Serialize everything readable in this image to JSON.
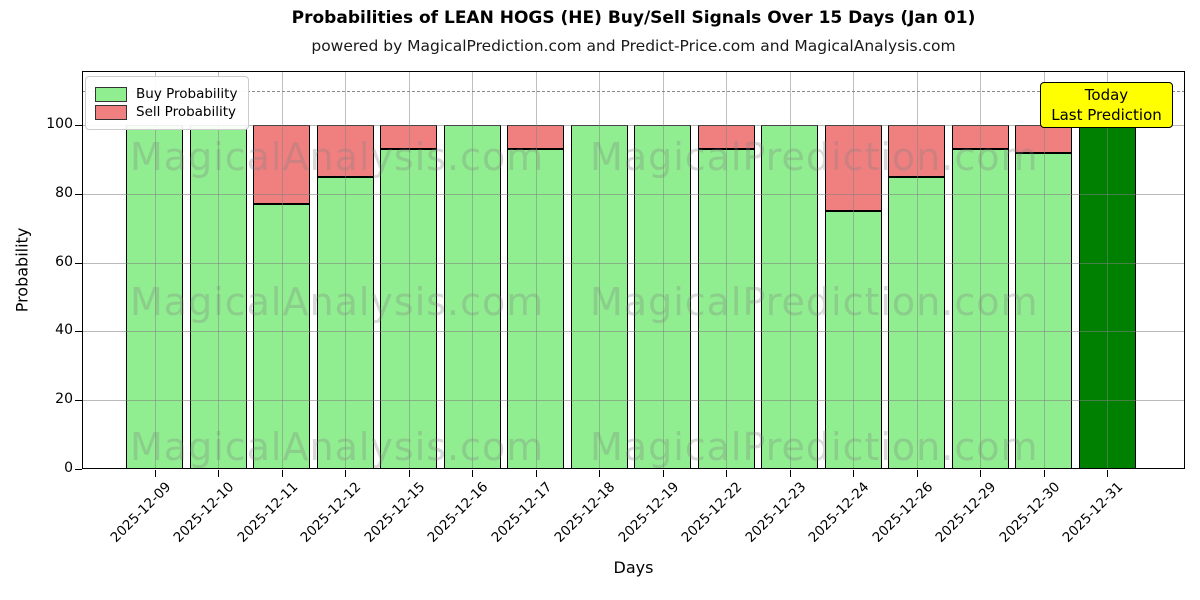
{
  "chart_data": {
    "type": "bar",
    "stacked": true,
    "title": "Probabilities of LEAN HOGS (HE) Buy/Sell Signals Over 15 Days (Jan 01)",
    "subtitle": "powered by MagicalPrediction.com and Predict-Price.com and MagicalAnalysis.com",
    "xlabel": "Days",
    "ylabel": "Probability",
    "categories": [
      "2025-12-09",
      "2025-12-10",
      "2025-12-11",
      "2025-12-12",
      "2025-12-15",
      "2025-12-16",
      "2025-12-17",
      "2025-12-18",
      "2025-12-19",
      "2025-12-22",
      "2025-12-23",
      "2025-12-24",
      "2025-12-26",
      "2025-12-29",
      "2025-12-30",
      "2025-12-31"
    ],
    "series": [
      {
        "name": "Buy Probability",
        "color": "#90EE90",
        "values": [
          100,
          100,
          77,
          85,
          93,
          100,
          93,
          100,
          100,
          93,
          100,
          75,
          85,
          93,
          92,
          100
        ]
      },
      {
        "name": "Sell Probability",
        "color": "#F08080",
        "values": [
          0,
          0,
          23,
          15,
          7,
          0,
          7,
          0,
          0,
          7,
          0,
          25,
          15,
          7,
          8,
          0
        ]
      }
    ],
    "today_bar": {
      "category": "2025-12-31",
      "index": 15,
      "color": "#008000"
    },
    "yticks": [
      0,
      20,
      40,
      60,
      80,
      100
    ],
    "ylim": [
      0,
      116
    ],
    "threshold_line_y": 110,
    "grid": true,
    "legend_position": "upper left",
    "legend": [
      "Buy Probability",
      "Sell Probability"
    ],
    "legend_colors": [
      "#90EE90",
      "#F08080"
    ],
    "annotation": {
      "line1": "Today",
      "line2": "Last Prediction",
      "bg_color": "#FFFF00"
    },
    "watermarks": {
      "left": "MagicalAnalysis.com",
      "right": "MagicalPrediction.com"
    }
  }
}
